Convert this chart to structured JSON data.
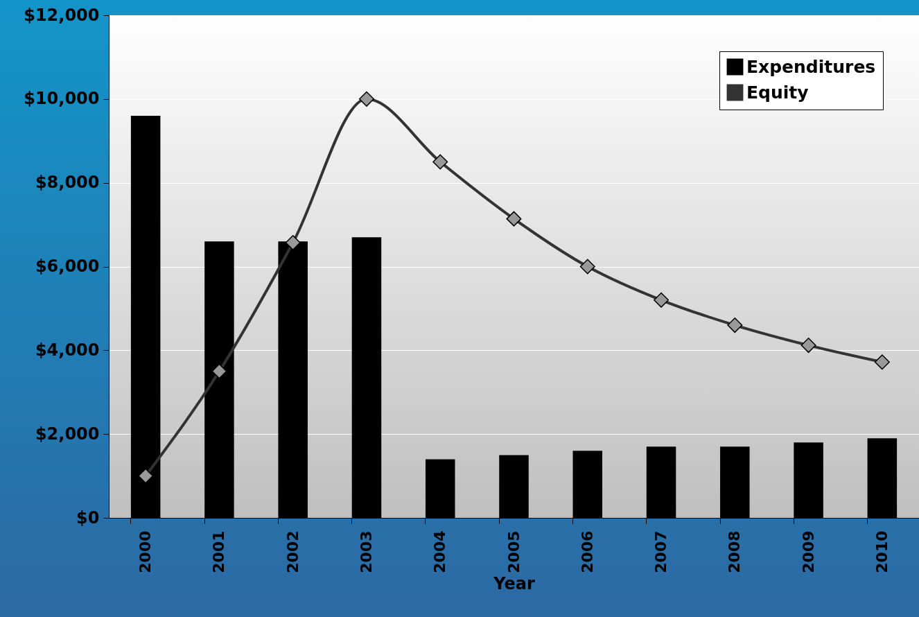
{
  "chart_data": {
    "type": "bar",
    "xlabel": "Year",
    "categories": [
      "2000",
      "2001",
      "2002",
      "2003",
      "2004",
      "2005",
      "2006",
      "2007",
      "2008",
      "2009",
      "2010"
    ],
    "series": [
      {
        "name": "Expenditures",
        "color": "#000000",
        "values": [
          9600,
          6600,
          6600,
          6700,
          1400,
          1500,
          1600,
          1700,
          1700,
          1800,
          1900
        ]
      },
      {
        "name": "Equity",
        "type": "line",
        "color": "#333333",
        "marker": "diamond",
        "values": [
          1000,
          3500,
          6570,
          10000,
          8500,
          7140,
          6000,
          5200,
          4600,
          4120,
          3720
        ]
      }
    ],
    "ylim": [
      0,
      12000
    ],
    "yticks": [
      {
        "value": 0,
        "label": "$0"
      },
      {
        "value": 2000,
        "label": "$2,000"
      },
      {
        "value": 4000,
        "label": "$4,000"
      },
      {
        "value": 6000,
        "label": "$6,000"
      },
      {
        "value": 8000,
        "label": "$8,000"
      },
      {
        "value": 10000,
        "label": "$10,000"
      },
      {
        "value": 12000,
        "label": "$12,000"
      }
    ],
    "grid": "y",
    "legend": "top right"
  }
}
